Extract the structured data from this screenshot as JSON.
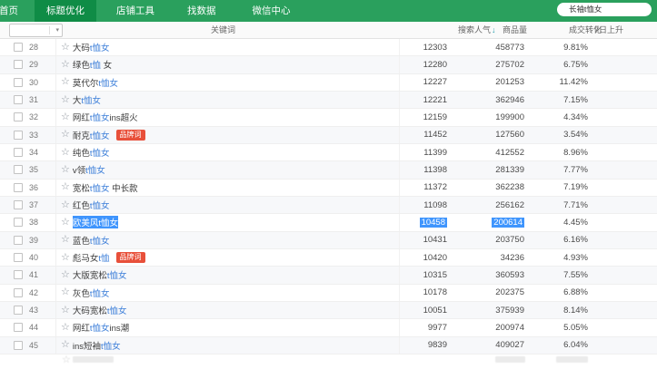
{
  "nav": {
    "items": [
      {
        "label": "首页",
        "active": false
      },
      {
        "label": "标题优化",
        "active": true
      },
      {
        "label": "店铺工具",
        "active": false
      },
      {
        "label": "找数据",
        "active": false
      },
      {
        "label": "微信中心",
        "active": false
      }
    ],
    "search_value": "长袖t恤女"
  },
  "icons": {
    "star": "☆",
    "caret": "▾",
    "sort_desc": "↓"
  },
  "colors": {
    "nav_green": "#2aa05d",
    "nav_active_green": "#0f8c46",
    "link_blue": "#3d7fd9",
    "selection_blue": "#3f95fd",
    "badge_red": "#e8503a"
  },
  "table": {
    "headers": {
      "keyword": "关键词",
      "search": "搜索人气",
      "products": "商品量",
      "conversion": "成交转化",
      "rise": "7日上升"
    },
    "badge_label": "品牌词",
    "rows": [
      {
        "num": "28",
        "pre": "大码",
        "match": "t恤女",
        "post": "",
        "badge": false,
        "selected": false,
        "search": "12303",
        "products": "458773",
        "conversion": "9.81%"
      },
      {
        "num": "29",
        "pre": "绿色",
        "match": "t恤",
        "post": " 女",
        "badge": false,
        "selected": false,
        "search": "12280",
        "products": "275702",
        "conversion": "6.75%"
      },
      {
        "num": "30",
        "pre": "莫代尔",
        "match": "t恤女",
        "post": "",
        "badge": false,
        "selected": false,
        "search": "12227",
        "products": "201253",
        "conversion": "11.42%"
      },
      {
        "num": "31",
        "pre": "大",
        "match": "t恤女",
        "post": "",
        "badge": false,
        "selected": false,
        "search": "12221",
        "products": "362946",
        "conversion": "7.15%"
      },
      {
        "num": "32",
        "pre": "网红",
        "match": "t恤女",
        "post": "ins超火",
        "badge": false,
        "selected": false,
        "search": "12159",
        "products": "199900",
        "conversion": "4.34%"
      },
      {
        "num": "33",
        "pre": "耐克",
        "match": "t恤女",
        "post": "",
        "badge": true,
        "selected": false,
        "search": "11452",
        "products": "127560",
        "conversion": "3.54%"
      },
      {
        "num": "34",
        "pre": "纯色",
        "match": "t恤女",
        "post": "",
        "badge": false,
        "selected": false,
        "search": "11399",
        "products": "412552",
        "conversion": "8.96%"
      },
      {
        "num": "35",
        "pre": "v领",
        "match": "t恤女",
        "post": "",
        "badge": false,
        "selected": false,
        "search": "11398",
        "products": "281339",
        "conversion": "7.77%"
      },
      {
        "num": "36",
        "pre": "宽松",
        "match": "t恤女",
        "post": " 中长款",
        "badge": false,
        "selected": false,
        "search": "11372",
        "products": "362238",
        "conversion": "7.19%"
      },
      {
        "num": "37",
        "pre": "红色",
        "match": "t恤女",
        "post": "",
        "badge": false,
        "selected": false,
        "search": "11098",
        "products": "256162",
        "conversion": "7.71%"
      },
      {
        "num": "38",
        "pre": "欧美风",
        "match": "t恤女",
        "post": "",
        "badge": false,
        "selected": true,
        "search": "10458",
        "products": "200614",
        "conversion": "4.45%"
      },
      {
        "num": "39",
        "pre": "蓝色",
        "match": "t恤女",
        "post": "",
        "badge": false,
        "selected": false,
        "search": "10431",
        "products": "203750",
        "conversion": "6.16%"
      },
      {
        "num": "40",
        "pre": "彪马女",
        "match": "t恤",
        "post": "",
        "badge": true,
        "selected": false,
        "search": "10420",
        "products": "34236",
        "conversion": "4.93%"
      },
      {
        "num": "41",
        "pre": "大版宽松",
        "match": "t恤女",
        "post": "",
        "badge": false,
        "selected": false,
        "search": "10315",
        "products": "360593",
        "conversion": "7.55%"
      },
      {
        "num": "42",
        "pre": "灰色",
        "match": "t恤女",
        "post": "",
        "badge": false,
        "selected": false,
        "search": "10178",
        "products": "202375",
        "conversion": "6.88%"
      },
      {
        "num": "43",
        "pre": "大码宽松",
        "match": "t恤女",
        "post": "",
        "badge": false,
        "selected": false,
        "search": "10051",
        "products": "375939",
        "conversion": "8.14%"
      },
      {
        "num": "44",
        "pre": "网红",
        "match": "t恤女",
        "post": "ins潮",
        "badge": false,
        "selected": false,
        "search": "9977",
        "products": "200974",
        "conversion": "5.05%"
      },
      {
        "num": "45",
        "pre": "ins短袖",
        "match": "t恤女",
        "post": "",
        "badge": false,
        "selected": false,
        "search": "9839",
        "products": "409027",
        "conversion": "6.04%"
      }
    ]
  }
}
